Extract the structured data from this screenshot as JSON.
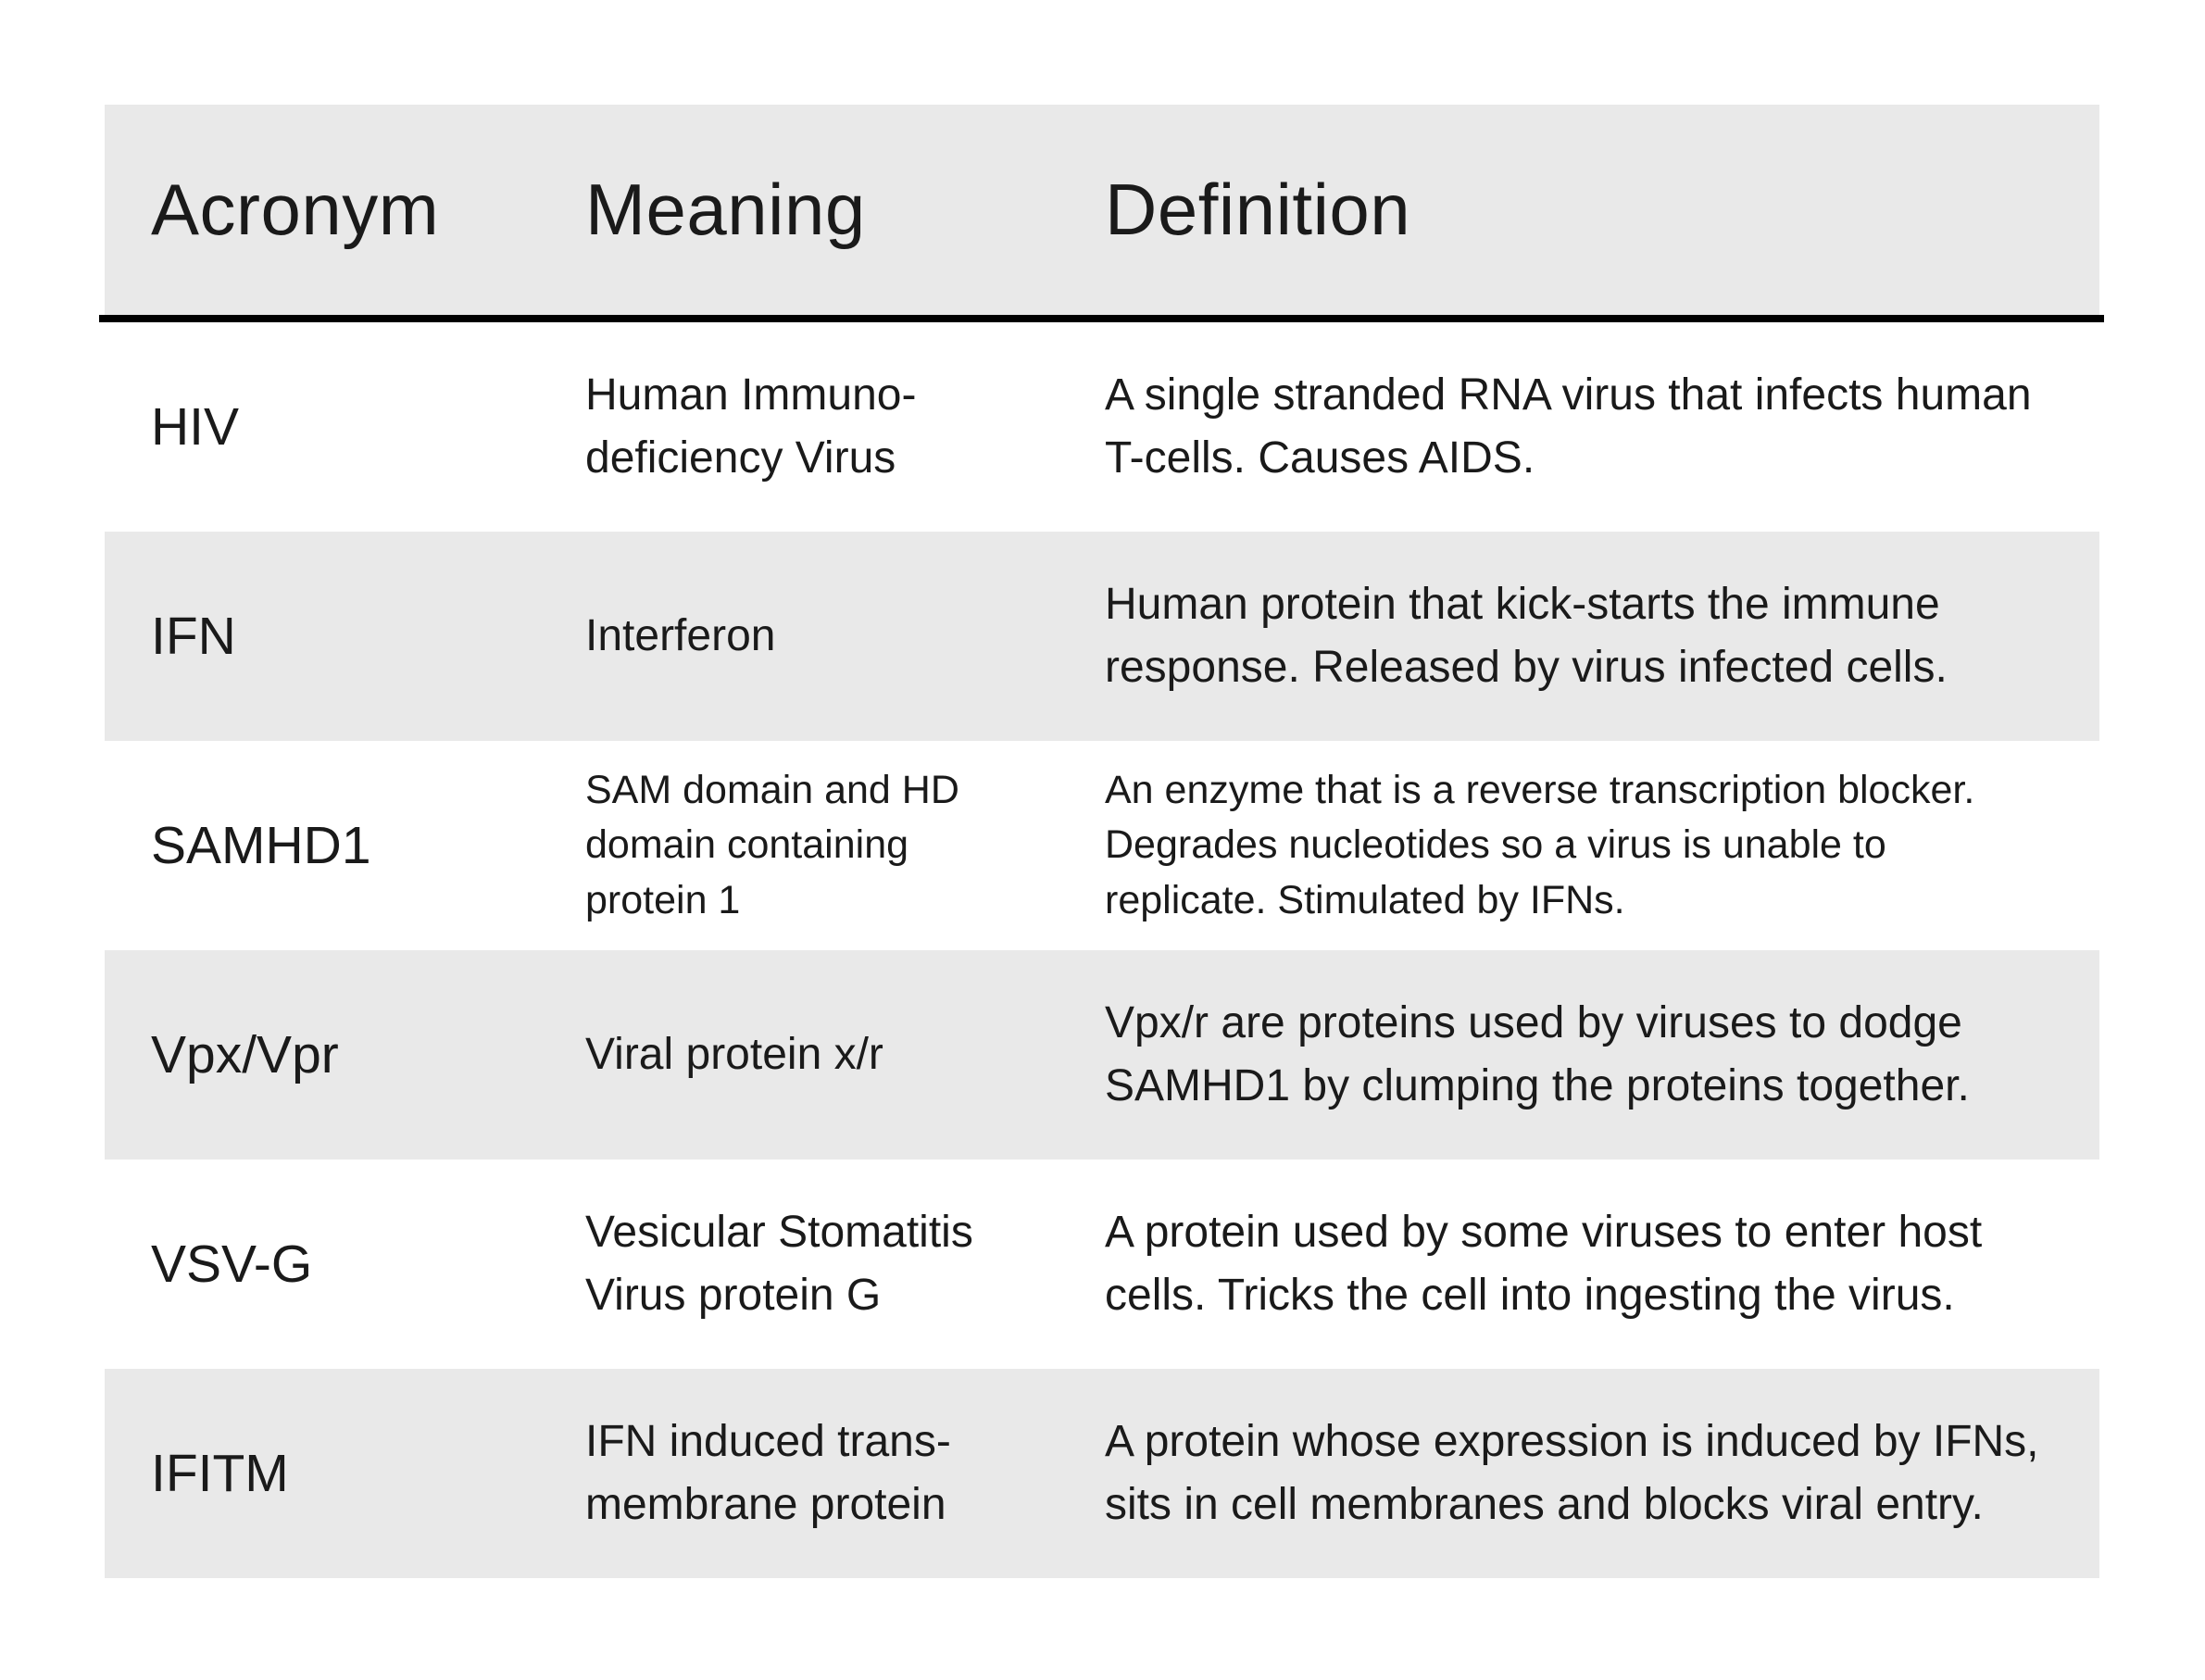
{
  "colors": {
    "row_shade": "#e9e9e9",
    "divider": "#000000",
    "text": "#1a1a1a",
    "background": "#ffffff"
  },
  "table": {
    "headers": {
      "acronym": "Acronym",
      "meaning": "Meaning",
      "definition": "Definition"
    },
    "rows": [
      {
        "acronym": "HIV",
        "meaning": "Human Immuno-\ndeficiency Virus",
        "definition": "A single stranded RNA virus that infects human\nT-cells. Causes AIDS."
      },
      {
        "acronym": "IFN",
        "meaning": "Interferon",
        "definition": "Human protein that kick-starts the immune\nresponse. Released by virus infected cells."
      },
      {
        "acronym": "SAMHD1",
        "meaning": "SAM domain and HD\ndomain containing\nprotein 1",
        "definition": "An enzyme that is a reverse transcription blocker.\nDegrades nucleotides so a virus is unable to\nreplicate. Stimulated by IFNs."
      },
      {
        "acronym": "Vpx/Vpr",
        "meaning": "Viral protein x/r",
        "definition": "Vpx/r are proteins used by viruses to dodge\nSAMHD1 by clumping the proteins together."
      },
      {
        "acronym": "VSV-G",
        "meaning": "Vesicular Stomatitis\nVirus protein G",
        "definition": "A protein used by some viruses to enter host\ncells. Tricks the cell into ingesting the virus."
      },
      {
        "acronym": "IFITM",
        "meaning": "IFN induced trans-\nmembrane protein",
        "definition": "A protein whose expression is induced by IFNs,\nsits in cell membranes and blocks viral entry."
      }
    ]
  }
}
